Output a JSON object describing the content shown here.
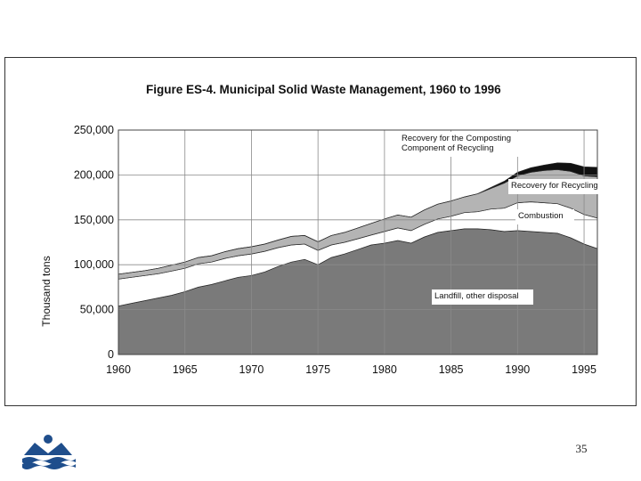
{
  "slide": {
    "page_number": "35"
  },
  "colors": {
    "landfill": "#7a7a7a",
    "combustion": "#ffffff",
    "recycling": "#b4b4b4",
    "composting": "#111111",
    "grid": "#8a8a8a",
    "logo": "#1f4e8c"
  },
  "logo": {
    "icon": "organization-logo-icon"
  },
  "chart_data": {
    "type": "area",
    "stacked": true,
    "title": "Figure ES-4.  Municipal Solid Waste Management, 1960 to 1996",
    "xlabel": "",
    "ylabel": "Thousand tons",
    "xlim": [
      1960,
      1996
    ],
    "ylim": [
      0,
      250000
    ],
    "grid": true,
    "x_ticks": [
      1960,
      1965,
      1970,
      1975,
      1980,
      1985,
      1990,
      1995
    ],
    "x_tick_labels": [
      "1960",
      "1965",
      "1970",
      "1975",
      "1980",
      "1985",
      "1990",
      "1995"
    ],
    "y_ticks": [
      0,
      50000,
      100000,
      150000,
      200000,
      250000
    ],
    "y_tick_labels": [
      "0",
      "50,000",
      "100,000",
      "150,000",
      "200,000",
      "250,000"
    ],
    "x": [
      1960,
      1961,
      1962,
      1963,
      1964,
      1965,
      1966,
      1967,
      1968,
      1969,
      1970,
      1971,
      1972,
      1973,
      1974,
      1975,
      1976,
      1977,
      1978,
      1979,
      1980,
      1981,
      1982,
      1983,
      1984,
      1985,
      1986,
      1987,
      1988,
      1989,
      1990,
      1991,
      1992,
      1993,
      1994,
      1995,
      1996
    ],
    "series": [
      {
        "name": "Landfill, other disposal",
        "color_key": "landfill",
        "values": [
          54000,
          57000,
          60000,
          63000,
          66000,
          70000,
          75000,
          78000,
          82000,
          86000,
          88000,
          92000,
          98000,
          103000,
          106000,
          100000,
          108000,
          112000,
          117000,
          122000,
          124000,
          127000,
          124000,
          131000,
          136000,
          138000,
          140000,
          140000,
          139000,
          137000,
          138000,
          137000,
          136000,
          135000,
          130000,
          123000,
          118000
        ]
      },
      {
        "name": "Combustion",
        "color_key": "combustion",
        "values": [
          30000,
          29000,
          28000,
          27000,
          27000,
          26000,
          26000,
          25000,
          25000,
          24000,
          24000,
          23000,
          21000,
          19000,
          17000,
          16000,
          14000,
          13000,
          12000,
          11000,
          13000,
          14000,
          14000,
          14000,
          15000,
          16000,
          18000,
          19000,
          23000,
          26000,
          31000,
          33000,
          33000,
          33000,
          33000,
          33000,
          34000
        ]
      },
      {
        "name": "Recovery for Recycling",
        "color_key": "recycling",
        "values": [
          5500,
          5500,
          5500,
          6000,
          6500,
          7000,
          7000,
          7000,
          7500,
          8000,
          8000,
          8000,
          8500,
          9500,
          9500,
          9500,
          10500,
          11000,
          12000,
          13000,
          14000,
          14500,
          15000,
          16000,
          16500,
          17000,
          17500,
          20000,
          23000,
          28000,
          30000,
          33000,
          36000,
          38000,
          41000,
          43000,
          46000
        ]
      },
      {
        "name": "Recovery for the Composting Component of Recycling",
        "color_key": "composting",
        "values": [
          0,
          0,
          0,
          0,
          0,
          0,
          0,
          0,
          0,
          0,
          0,
          0,
          0,
          0,
          0,
          0,
          0,
          0,
          0,
          0,
          0,
          0,
          0,
          0,
          0,
          0,
          0,
          0,
          1000,
          2000,
          4000,
          5000,
          6000,
          7500,
          9000,
          10000,
          10500
        ]
      }
    ],
    "annotations": [
      {
        "label": "Recovery for the Composting Component of Recycling",
        "lines": [
          "Recovery for the Composting",
          "Component of Recycling"
        ],
        "series_index": 3
      },
      {
        "label": "Recovery for Recycling",
        "lines": [
          "Recovery for Recycling"
        ],
        "series_index": 2
      },
      {
        "label": "Combustion",
        "lines": [
          "Combustion"
        ],
        "series_index": 1
      },
      {
        "label": "Landfill, other disposal",
        "lines": [
          "Landfill, other disposal"
        ],
        "series_index": 0
      }
    ]
  }
}
